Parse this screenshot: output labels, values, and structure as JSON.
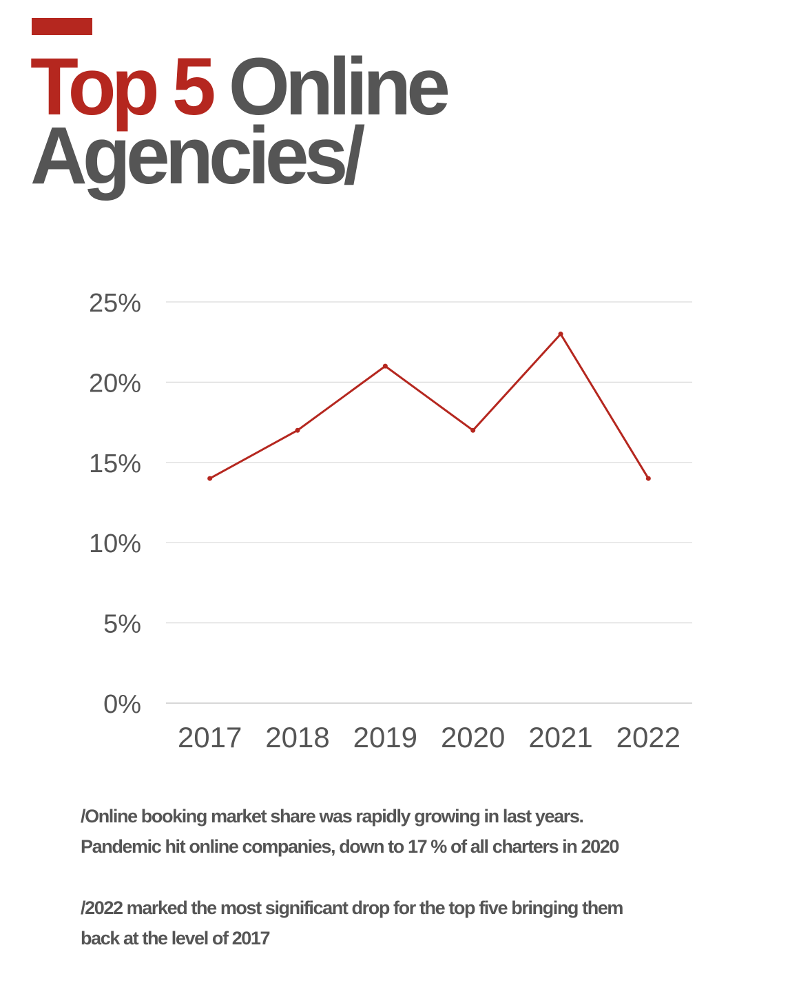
{
  "header": {
    "title_highlight": "Top 5",
    "title_rest_line1": " Online",
    "title_line2": "Agencies/"
  },
  "colors": {
    "accent": "#b5271f",
    "text": "#555555",
    "grid": "#d9d9d9"
  },
  "chart_data": {
    "type": "line",
    "title": "Top 5 Online Agencies/",
    "xlabel": "",
    "ylabel": "",
    "categories": [
      "2017",
      "2018",
      "2019",
      "2020",
      "2021",
      "2022"
    ],
    "series": [
      {
        "name": "Online booking market share",
        "values": [
          14,
          17,
          21,
          17,
          23,
          14
        ],
        "color": "#b5271f"
      }
    ],
    "ylim": [
      0,
      25
    ],
    "yticks": [
      0,
      5,
      10,
      15,
      20,
      25
    ],
    "ytick_labels": [
      "0%",
      "5%",
      "10%",
      "15%",
      "20%",
      "25%"
    ],
    "grid": true,
    "legend": "none"
  },
  "notes": [
    {
      "line1": "/Online booking market share was rapidly growing in last years.",
      "line2": "Pandemic hit online companies, down to 17 % of all charters in 2020"
    },
    {
      "line1": "/2022 marked the most significant drop for the top five bringing them",
      "line2": "back at the level of 2017"
    }
  ]
}
